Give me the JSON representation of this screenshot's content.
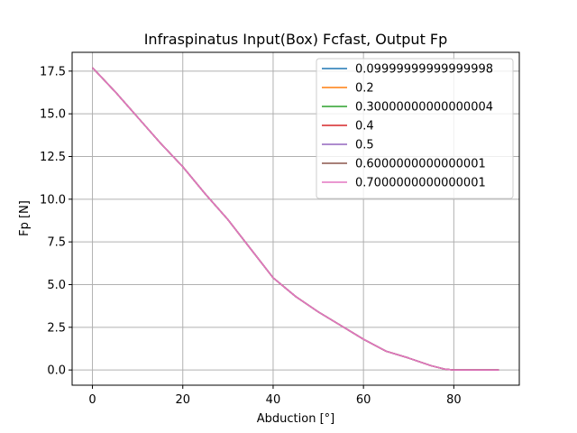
{
  "chart_data": {
    "type": "line",
    "title": "Infraspinatus Input(Box) Fcfast, Output Fp",
    "xlabel": "Abduction [°]",
    "ylabel": "Fp [N]",
    "xlim": [
      -4.5,
      94.5
    ],
    "ylim": [
      -0.89,
      18.6
    ],
    "xticks": [
      0,
      20,
      40,
      60,
      80
    ],
    "yticks": [
      0.0,
      2.5,
      5.0,
      7.5,
      10.0,
      12.5,
      15.0,
      17.5
    ],
    "xtick_labels": [
      "0",
      "20",
      "40",
      "60",
      "80"
    ],
    "ytick_labels": [
      "0.0",
      "2.5",
      "5.0",
      "7.5",
      "10.0",
      "12.5",
      "15.0",
      "17.5"
    ],
    "grid": true,
    "legend_position": "top-right",
    "x": [
      0,
      5,
      10,
      15,
      20,
      25,
      30,
      35,
      40,
      45,
      50,
      55,
      60,
      65,
      70,
      75,
      78,
      80,
      85,
      90
    ],
    "series": [
      {
        "name": "0.09999999999999998",
        "color": "#1f77b4",
        "values": [
          17.7,
          16.3,
          14.8,
          13.3,
          11.9,
          10.3,
          8.8,
          7.1,
          5.4,
          4.3,
          3.4,
          2.6,
          1.8,
          1.1,
          0.7,
          0.25,
          0.05,
          0.0,
          0.0,
          0.0
        ]
      },
      {
        "name": "0.2",
        "color": "#ff7f0e",
        "values": [
          17.7,
          16.3,
          14.8,
          13.3,
          11.9,
          10.3,
          8.8,
          7.1,
          5.4,
          4.3,
          3.4,
          2.6,
          1.8,
          1.1,
          0.7,
          0.25,
          0.05,
          0.0,
          0.0,
          0.0
        ]
      },
      {
        "name": "0.30000000000000004",
        "color": "#2ca02c",
        "values": [
          17.7,
          16.3,
          14.8,
          13.3,
          11.9,
          10.3,
          8.8,
          7.1,
          5.4,
          4.3,
          3.4,
          2.6,
          1.8,
          1.1,
          0.7,
          0.25,
          0.05,
          0.0,
          0.0,
          0.0
        ]
      },
      {
        "name": "0.4",
        "color": "#d62728",
        "values": [
          17.7,
          16.3,
          14.8,
          13.3,
          11.9,
          10.3,
          8.8,
          7.1,
          5.4,
          4.3,
          3.4,
          2.6,
          1.8,
          1.1,
          0.7,
          0.25,
          0.05,
          0.0,
          0.0,
          0.0
        ]
      },
      {
        "name": "0.5",
        "color": "#9467bd",
        "values": [
          17.7,
          16.3,
          14.8,
          13.3,
          11.9,
          10.3,
          8.8,
          7.1,
          5.4,
          4.3,
          3.4,
          2.6,
          1.8,
          1.1,
          0.7,
          0.25,
          0.05,
          0.0,
          0.0,
          0.0
        ]
      },
      {
        "name": "0.6000000000000001",
        "color": "#8c564b",
        "values": [
          17.7,
          16.3,
          14.8,
          13.3,
          11.9,
          10.3,
          8.8,
          7.1,
          5.4,
          4.3,
          3.4,
          2.6,
          1.8,
          1.1,
          0.7,
          0.25,
          0.05,
          0.0,
          0.0,
          0.0
        ]
      },
      {
        "name": "0.7000000000000001",
        "color": "#e377c2",
        "values": [
          17.7,
          16.3,
          14.8,
          13.3,
          11.9,
          10.3,
          8.8,
          7.1,
          5.4,
          4.3,
          3.4,
          2.6,
          1.8,
          1.1,
          0.7,
          0.25,
          0.05,
          0.0,
          0.0,
          0.0
        ]
      }
    ]
  }
}
